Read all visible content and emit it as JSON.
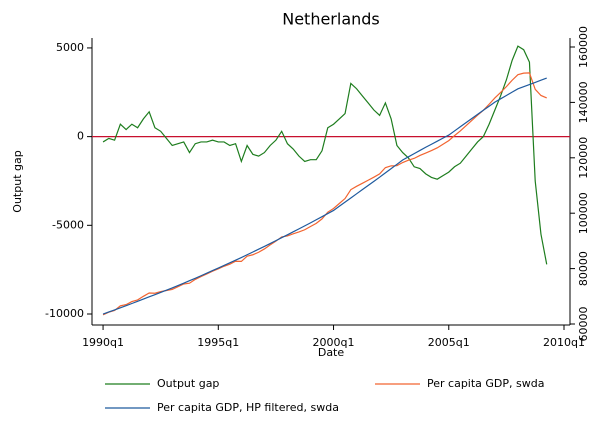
{
  "chart_data": {
    "type": "line",
    "title": "Netherlands",
    "xlabel": "Date",
    "ylabel": "Output gap",
    "x": [
      1990,
      1990.25,
      1990.5,
      1990.75,
      1991,
      1991.25,
      1991.5,
      1991.75,
      1992,
      1992.25,
      1992.5,
      1992.75,
      1993,
      1993.25,
      1993.5,
      1993.75,
      1994,
      1994.25,
      1994.5,
      1994.75,
      1995,
      1995.25,
      1995.5,
      1995.75,
      1996,
      1996.25,
      1996.5,
      1996.75,
      1997,
      1997.25,
      1997.5,
      1997.75,
      1998,
      1998.25,
      1998.5,
      1998.75,
      1999,
      1999.25,
      1999.5,
      1999.75,
      2000,
      2000.25,
      2000.5,
      2000.75,
      2001,
      2001.25,
      2001.5,
      2001.75,
      2002,
      2002.25,
      2002.5,
      2002.75,
      2003,
      2003.25,
      2003.5,
      2003.75,
      2004,
      2004.25,
      2004.5,
      2004.75,
      2005,
      2005.25,
      2005.5,
      2005.75,
      2006,
      2006.25,
      2006.5,
      2006.75,
      2007,
      2007.25,
      2007.5,
      2007.75,
      2008,
      2008.25,
      2008.5,
      2008.75,
      2009,
      2009.25
    ],
    "series": [
      {
        "name": "Output gap",
        "color": "#1e7d1e",
        "axis": "y",
        "values": [
          -300,
          -100,
          -200,
          700,
          400,
          700,
          500,
          1000,
          1400,
          500,
          300,
          -100,
          -500,
          -400,
          -300,
          -900,
          -400,
          -300,
          -300,
          -200,
          -300,
          -300,
          -500,
          -400,
          -1400,
          -500,
          -1000,
          -1100,
          -900,
          -500,
          -200,
          300,
          -400,
          -700,
          -1100,
          -1400,
          -1300,
          -1300,
          -800,
          500,
          700,
          1000,
          1300,
          3000,
          2700,
          2300,
          1900,
          1500,
          1200,
          1900,
          1000,
          -500,
          -900,
          -1200,
          -1700,
          -1800,
          -2100,
          -2300,
          -2400,
          -2200,
          -2000,
          -1700,
          -1500,
          -1100,
          -700,
          -300,
          0,
          700,
          1500,
          2300,
          3200,
          4300,
          5100,
          4900,
          4200,
          -2500,
          -5500,
          -7200
        ]
      },
      {
        "name": "Per capita GDP, swda",
        "color": "#f26430",
        "axis": "y2",
        "values": [
          63300,
          64250,
          64900,
          66550,
          67000,
          68100,
          68700,
          70000,
          71200,
          71100,
          71700,
          72100,
          72500,
          73475,
          74450,
          74725,
          76100,
          77125,
          78050,
          79075,
          79900,
          80850,
          81600,
          82650,
          82600,
          84500,
          85000,
          85900,
          87100,
          88550,
          89900,
          91450,
          91800,
          92575,
          93250,
          94025,
          95200,
          96325,
          97950,
          100375,
          101700,
          103500,
          105300,
          108500,
          109700,
          110800,
          111900,
          113000,
          114200,
          116450,
          117100,
          117150,
          118300,
          119150,
          119800,
          120850,
          121700,
          122600,
          123600,
          124900,
          126200,
          128000,
          129700,
          131600,
          133500,
          135375,
          137150,
          139325,
          141600,
          143600,
          145700,
          148000,
          150000,
          150575,
          150650,
          144725,
          142500,
          141600
        ]
      },
      {
        "name": "Per capita GDP, HP filtered, swda",
        "color": "#1f5a9e",
        "axis": "y2",
        "values": [
          63600,
          64350,
          65100,
          65850,
          66600,
          67400,
          68200,
          69000,
          69800,
          70600,
          71400,
          72200,
          73000,
          73875,
          74750,
          75625,
          76500,
          77425,
          78350,
          79275,
          80200,
          81150,
          82100,
          83050,
          84000,
          85000,
          86000,
          87000,
          88000,
          89050,
          90100,
          91150,
          92200,
          93275,
          94350,
          95425,
          96500,
          97625,
          98750,
          99875,
          101000,
          102500,
          104000,
          105500,
          107000,
          108500,
          110000,
          111500,
          113000,
          114550,
          116100,
          117650,
          119200,
          120350,
          121500,
          122650,
          123800,
          124900,
          126000,
          127100,
          128200,
          129700,
          131200,
          132700,
          134200,
          135675,
          137150,
          138625,
          140100,
          141300,
          142500,
          143700,
          144900,
          145675,
          146450,
          147225,
          148000,
          148800
        ]
      }
    ],
    "xlim": [
      1989.52,
      2010.26
    ],
    "xticks": [
      {
        "value": 1990,
        "label": "1990q1"
      },
      {
        "value": 1995,
        "label": "1995q1"
      },
      {
        "value": 2000,
        "label": "2000q1"
      },
      {
        "value": 2005,
        "label": "2005q1"
      },
      {
        "value": 2010,
        "label": "2010q1"
      }
    ],
    "ylim": [
      -10620,
      5560
    ],
    "yticks": [
      -10000,
      -5000,
      0,
      5000
    ],
    "y2lim": [
      59640,
      163250
    ],
    "y2ticks": [
      60000,
      80000,
      100000,
      120000,
      140000,
      160000
    ],
    "hline": {
      "value": 0,
      "color": "#c8102e"
    },
    "grid": false,
    "legend": "bottom"
  }
}
